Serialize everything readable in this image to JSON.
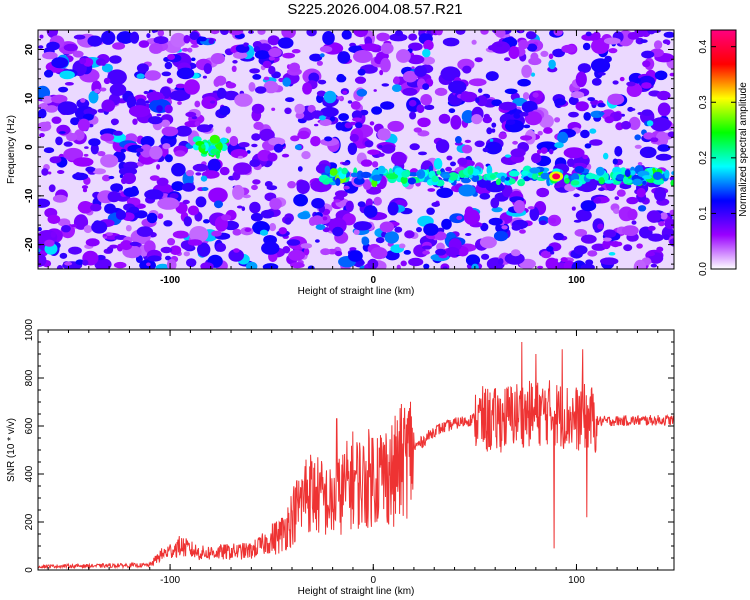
{
  "title": "S225.2026.004.08.57.R21",
  "chart_data": [
    {
      "type": "heatmap",
      "xlabel": "Height of straight line (km)",
      "ylabel": "Frequency (Hz)",
      "xlim": [
        -165,
        148
      ],
      "ylim": [
        -25,
        24
      ],
      "xticks": [
        -100,
        0,
        100
      ],
      "yticks": [
        -20,
        -10,
        0,
        10,
        20
      ],
      "colorbar": {
        "label": "Normalized spectral amplitude",
        "range": [
          0,
          0.43
        ],
        "ticks": [
          "0.0",
          "0.1",
          "0.2",
          "0.3",
          "0.4"
        ],
        "colors": [
          "#ffffff",
          "#9900ff",
          "#0000ff",
          "#00ffff",
          "#00ff00",
          "#ffff00",
          "#ff0000",
          "#ff0080"
        ]
      },
      "features": {
        "band_frequency_hz": -6,
        "band_x_range_km": [
          -25,
          148
        ],
        "peak_x_km": 90,
        "secondary_blob_x_km": -80,
        "secondary_blob_freq_hz": 0
      }
    },
    {
      "type": "line",
      "xlabel": "Height of straight line (km)",
      "ylabel": "SNR (10 * v/v)",
      "xlim": [
        -165,
        148
      ],
      "ylim": [
        0,
        1000
      ],
      "xticks": [
        -100,
        0,
        100
      ],
      "yticks": [
        0,
        200,
        400,
        600,
        800,
        1000
      ],
      "series": [
        {
          "color": "#ee3333",
          "envelope": {
            "x": [
              -165,
              -110,
              -105,
              -95,
              -85,
              -60,
              -45,
              -38,
              -32,
              -25,
              -20,
              -15,
              -10,
              -5,
              0,
              5,
              10,
              15,
              20,
              25,
              30,
              40,
              50,
              60,
              70,
              80,
              85,
              90,
              95,
              100,
              105,
              110,
              148
            ],
            "y": [
              15,
              20,
              60,
              100,
              70,
              80,
              150,
              250,
              330,
              300,
              270,
              330,
              380,
              360,
              400,
              400,
              410,
              460,
              510,
              540,
              580,
              610,
              630,
              620,
              650,
              650,
              660,
              650,
              640,
              630,
              640,
              620,
              625
            ]
          },
          "spikes": [
            {
              "x": -33,
              "y": 460
            },
            {
              "x": -18,
              "y": 630
            },
            {
              "x": 10,
              "y": 180
            },
            {
              "x": 73,
              "y": 950
            },
            {
              "x": 80,
              "y": 900
            },
            {
              "x": 89,
              "y": 1000
            },
            {
              "x": 89,
              "y": 90
            },
            {
              "x": 93,
              "y": 920
            },
            {
              "x": 103,
              "y": 920
            },
            {
              "x": 105,
              "y": 220
            }
          ]
        }
      ]
    }
  ]
}
